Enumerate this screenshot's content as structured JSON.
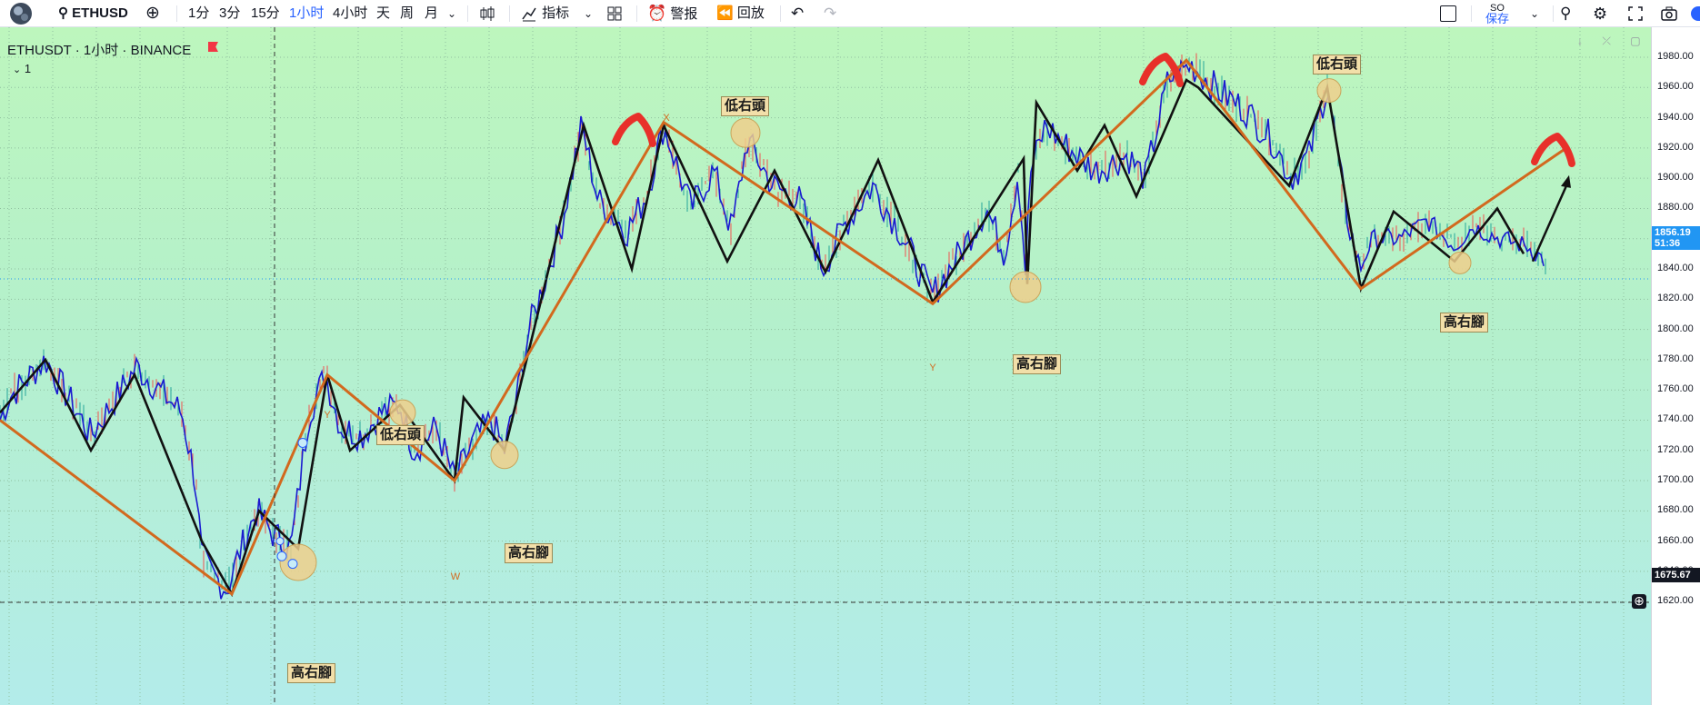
{
  "toolbar": {
    "symbol": "ETHUSD",
    "intervals": [
      "1分",
      "3分",
      "15分",
      "1小时",
      "4小时",
      "天",
      "周",
      "月"
    ],
    "active_interval": "1小时",
    "indicators_label": "指标",
    "alert_label": "警报",
    "replay_label": "回放",
    "layout_name": "SO",
    "save_label": "保存"
  },
  "legend": {
    "title": "ETHUSDT · 1小时 · BINANCE",
    "sub": "1"
  },
  "price_axis": {
    "ticks": [
      "1980.00",
      "1960.00",
      "1940.00",
      "1920.00",
      "1900.00",
      "1880.00",
      "1860.00",
      "1840.00",
      "1820.00",
      "1800.00",
      "1780.00",
      "1760.00",
      "1740.00",
      "1720.00",
      "1700.00",
      "1680.00",
      "1660.00",
      "1640.00",
      "1620.00"
    ],
    "last_price": "1856.19",
    "countdown": "51:36",
    "crosshair_price": "1675.67"
  },
  "annotations": {
    "high_right_foot": "高右腳",
    "low_right_head": "低右頭",
    "wave_labels": [
      "Y",
      "W",
      "X",
      "Y"
    ]
  },
  "colors": {
    "accent": "#2962ff",
    "price_tag": "#2196f3",
    "zigzag_orange": "#d2691e",
    "zigzag_black": "#111111",
    "price_line": "#1a1ad0",
    "marker_red": "#e8302a",
    "circle_fill": "#efcf8c"
  }
}
